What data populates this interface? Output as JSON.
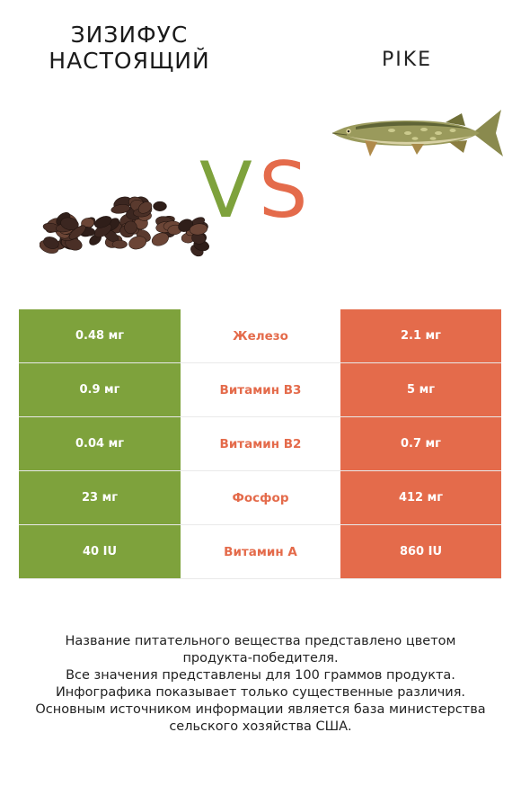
{
  "colors": {
    "green": "#7ea23c",
    "orange": "#e46b4b"
  },
  "header": {
    "left_title": "ЗИЗИФУС НАСТОЯЩИЙ",
    "right_title": "PIKE",
    "vs_v": "V",
    "vs_s": "S"
  },
  "images": {
    "left": "jujube-seeds-illustration",
    "right": "pike-fish-illustration"
  },
  "comparison": [
    {
      "nutrient": "Железо",
      "left": "0.48 мг",
      "right": "2.1 мг",
      "winner": "right"
    },
    {
      "nutrient": "Витамин B3",
      "left": "0.9 мг",
      "right": "5 мг",
      "winner": "right"
    },
    {
      "nutrient": "Витамин B2",
      "left": "0.04 мг",
      "right": "0.7 мг",
      "winner": "right"
    },
    {
      "nutrient": "Фосфор",
      "left": "23 мг",
      "right": "412 мг",
      "winner": "right"
    },
    {
      "nutrient": "Витамин A",
      "left": "40 IU",
      "right": "860 IU",
      "winner": "right"
    }
  ],
  "footer": {
    "line1": "Название питательного вещества представлено цветом",
    "line2": "продукта-победителя.",
    "line3": "Все значения представлены для 100 граммов продукта.",
    "line4": "Инфографика показывает только существенные различия.",
    "line5": "Основным источником информации является база министерства",
    "line6": "сельского хозяйства США."
  }
}
